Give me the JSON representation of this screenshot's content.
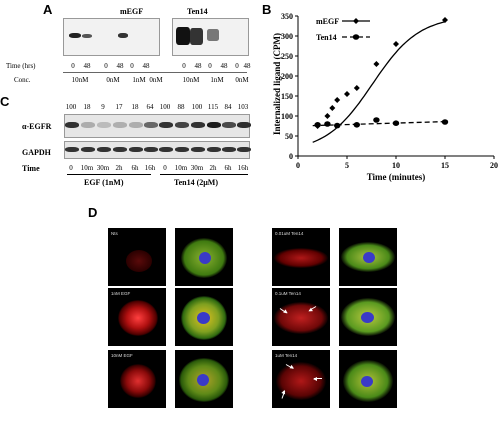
{
  "panelA": {
    "letter": "A",
    "group_mEGF": "mEGF",
    "group_Ten14": "Ten14",
    "time_label": "Time (hrs)",
    "conc_label": "Conc.",
    "times": [
      "0",
      "48",
      "0",
      "48",
      "0",
      "48",
      "0",
      "48",
      "0",
      "48",
      "0",
      "48"
    ],
    "concs": [
      "10nM",
      "0nM",
      "1nM",
      "0nM",
      "10nM",
      "1nM",
      "0nM"
    ]
  },
  "panelB": {
    "letter": "B",
    "chart_data": {
      "type": "line",
      "xlabel": "Time (minutes)",
      "ylabel": "Internalized ligand (CPM)",
      "xlim": [
        0,
        20
      ],
      "ylim": [
        0,
        350
      ],
      "xticks": [
        0,
        5,
        10,
        15,
        20
      ],
      "yticks": [
        0,
        50,
        100,
        150,
        200,
        250,
        300,
        350
      ],
      "legend_position": "top-left",
      "series": [
        {
          "name": "mEGF",
          "x": [
            2,
            3,
            3.5,
            4,
            5,
            6,
            8,
            10,
            15
          ],
          "y": [
            75,
            100,
            120,
            140,
            155,
            170,
            230,
            280,
            340
          ],
          "fit": "solid",
          "marker": "diamond"
        },
        {
          "name": "Ten14",
          "x": [
            2,
            3,
            4,
            6,
            8,
            10,
            15
          ],
          "y": [
            78,
            80,
            76,
            78,
            90,
            82,
            85
          ],
          "fit": "dashed",
          "marker": "circle"
        }
      ]
    }
  },
  "panelC": {
    "letter": "C",
    "values": [
      "100",
      "18",
      "9",
      "17",
      "18",
      "64",
      "100",
      "88",
      "100",
      "115",
      "84",
      "103"
    ],
    "row_egfr": "α-EGFR",
    "row_gapdh": "GAPDH",
    "time_label": "Time",
    "times": [
      "0",
      "10m",
      "30m",
      "2h",
      "6h",
      "16h",
      "0",
      "10m",
      "30m",
      "2h",
      "6h",
      "16h"
    ],
    "group_egf": "EGF (1nM)",
    "group_ten14": "Ten14 (2μM)"
  },
  "panelD": {
    "letter": "D",
    "labels": [
      "Nts",
      "1nM EGF",
      "10nM EGF",
      "0.01uM Ten14",
      "0.1uM Ten14",
      "1uM Ten14"
    ]
  }
}
